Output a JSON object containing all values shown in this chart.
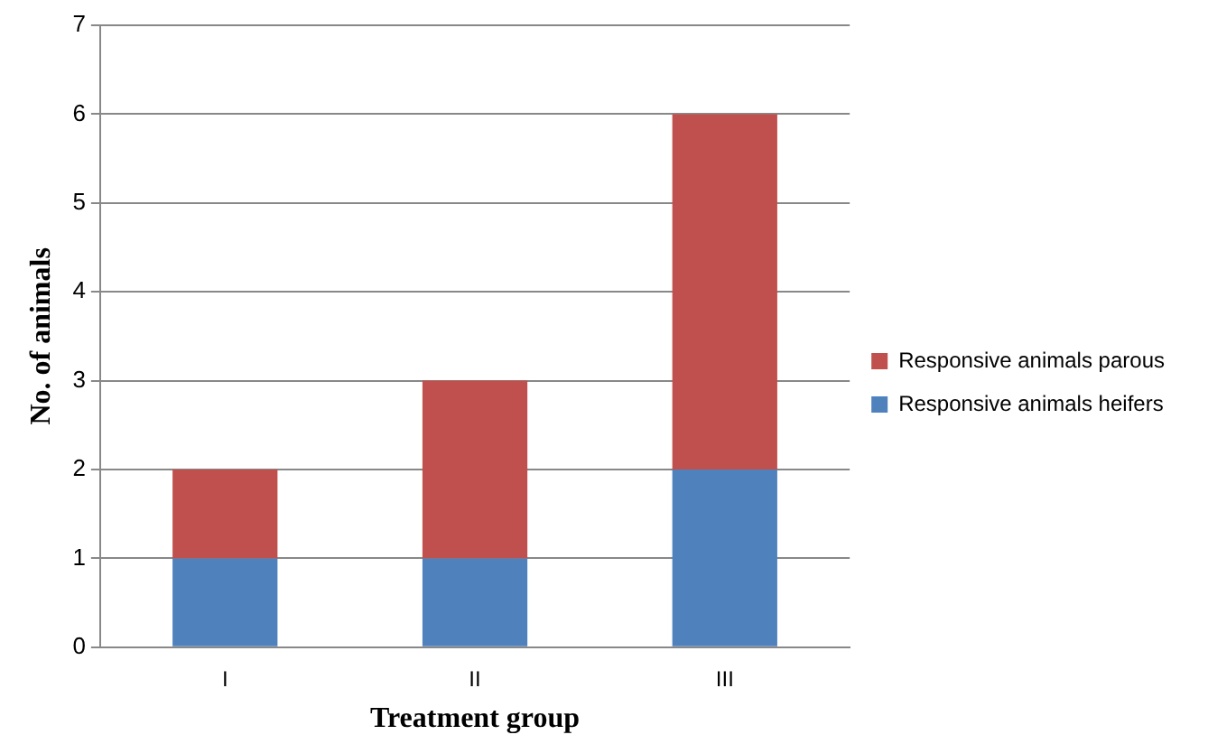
{
  "chart_data": {
    "type": "bar",
    "stacked": true,
    "xlabel": "Treatment group",
    "ylabel": "No. of animals",
    "categories": [
      "I",
      "II",
      "III"
    ],
    "series": [
      {
        "name": "Responsive animals heifers",
        "color": "#4f81bd",
        "values": [
          1,
          1,
          2
        ]
      },
      {
        "name": "Responsive animals parous",
        "color": "#c0504d",
        "values": [
          1,
          2,
          4
        ]
      }
    ],
    "ylim": [
      0,
      7
    ],
    "yticks": [
      0,
      1,
      2,
      3,
      4,
      5,
      6,
      7
    ],
    "grid": "y",
    "legend": "right"
  }
}
